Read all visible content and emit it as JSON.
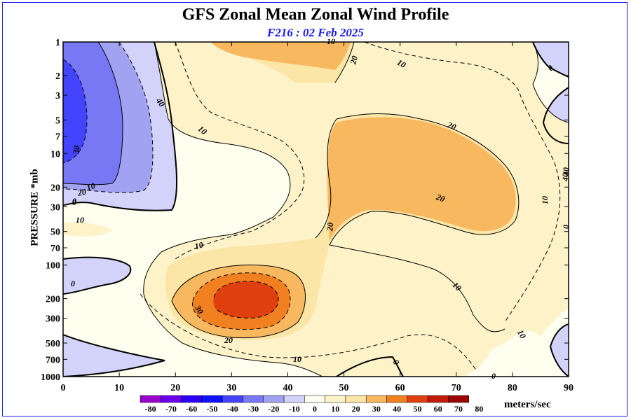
{
  "chart_data": {
    "type": "heatmap",
    "title": "GFS Zonal Mean Zonal Wind Profile",
    "subtitle": "F216 : 02 Feb 2025",
    "xlabel": "",
    "ylabel": "PRESSURE *mb",
    "x_ticks": [
      0,
      10,
      20,
      30,
      40,
      50,
      60,
      70,
      80,
      90
    ],
    "xlim": [
      0,
      90
    ],
    "y_ticks": [
      1,
      2,
      3,
      5,
      7,
      10,
      20,
      30,
      50,
      70,
      100,
      200,
      300,
      500,
      700,
      1000
    ],
    "y_tick_labels": [
      "1",
      "2",
      "3",
      "5",
      "7",
      "10",
      "20",
      "30",
      "50",
      "70",
      "100",
      "200",
      "300",
      "500",
      "700",
      "1000"
    ],
    "ylim": [
      1000,
      1
    ],
    "y_scale": "log",
    "colorbar": {
      "levels": [
        -80,
        -70,
        -60,
        -50,
        -40,
        -30,
        -20,
        -10,
        0,
        10,
        20,
        30,
        40,
        50,
        60,
        70,
        80
      ],
      "labels": [
        "-80",
        "-70",
        "-60",
        "-50",
        "-40",
        "-30",
        "-20",
        "-10",
        "0",
        "10",
        "20",
        "30",
        "40",
        "50",
        "60",
        "70",
        "80"
      ],
      "colors": [
        "#9a00cc",
        "#6a00ee",
        "#2b00f5",
        "#1010ff",
        "#4444ff",
        "#7878f5",
        "#a2a2f2",
        "#d2d2fb",
        "#fffff0",
        "#fdf2c8",
        "#fbe6a8",
        "#f7b860",
        "#f08020",
        "#e04010",
        "#c41a08",
        "#9e0000",
        "#6e0000",
        "#8b6d2c"
      ],
      "units": "meters/sec"
    },
    "contour_labels": [
      "10",
      "20",
      "10",
      "40",
      "10",
      "20",
      "30",
      "10",
      "20",
      "0",
      "10",
      "0",
      "20",
      "10",
      "20",
      "40",
      "30",
      "20",
      "10",
      "10",
      "0",
      "0",
      "10",
      "0",
      "10",
      "40",
      "0",
      "0"
    ]
  }
}
